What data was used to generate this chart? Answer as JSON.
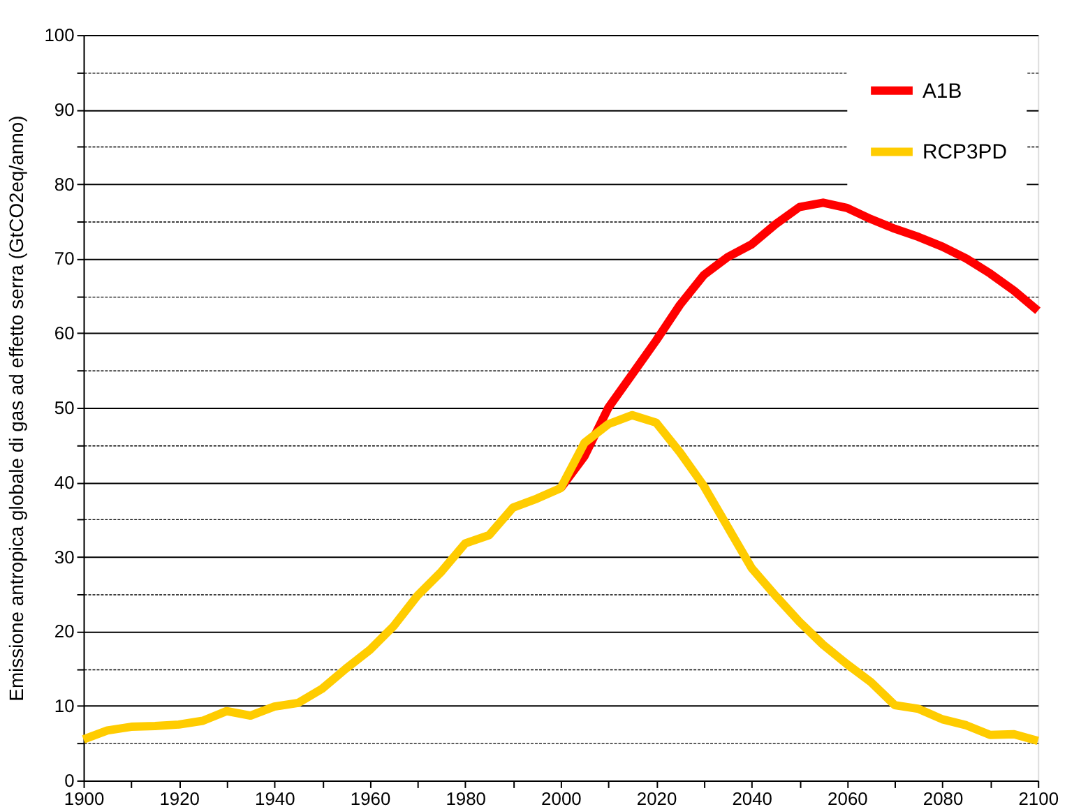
{
  "chart_data": {
    "type": "line",
    "ylabel": "Emissione antropica globale di gas ad effetto serra (GtCO2eq/anno)",
    "xlim": [
      1900,
      2100
    ],
    "ylim": [
      0,
      100
    ],
    "xticks": [
      1900,
      {
        "value": 1910,
        "label": null
      },
      1920,
      {
        "value": 1930,
        "label": null
      },
      1940,
      {
        "value": 1950,
        "label": null
      },
      1960,
      {
        "value": 1970,
        "label": null
      },
      1980,
      {
        "value": 1990,
        "label": null
      },
      2000,
      {
        "value": 2010,
        "label": null
      },
      2020,
      {
        "value": 2030,
        "label": null
      },
      2040,
      {
        "value": 2050,
        "label": null
      },
      2060,
      {
        "value": 2070,
        "label": null
      },
      2080,
      {
        "value": 2090,
        "label": null
      },
      2100
    ],
    "yticks": [
      0,
      {
        "value": 5,
        "label": null
      },
      10,
      {
        "value": 15,
        "label": null
      },
      20,
      {
        "value": 25,
        "label": null
      },
      30,
      {
        "value": 35,
        "label": null
      },
      40,
      {
        "value": 45,
        "label": null
      },
      50,
      {
        "value": 55,
        "label": null
      },
      60,
      {
        "value": 65,
        "label": null
      },
      70,
      {
        "value": 75,
        "label": null
      },
      80,
      {
        "value": 85,
        "label": null
      },
      90,
      {
        "value": 95,
        "label": null
      },
      100
    ],
    "grid": "y",
    "legend": "top right",
    "marker": "none",
    "line_style": "solid",
    "x": [
      1900,
      1905,
      1910,
      1915,
      1920,
      1925,
      1930,
      1935,
      1940,
      1945,
      1950,
      1955,
      1960,
      1965,
      1970,
      1975,
      1980,
      1985,
      1990,
      1995,
      2000,
      2005,
      2010,
      2015,
      2020,
      2025,
      2030,
      2035,
      2040,
      2045,
      2050,
      2055,
      2060,
      2065,
      2070,
      2075,
      2080,
      2085,
      2090,
      2095,
      2100
    ],
    "series": [
      {
        "name": "A1B",
        "color": "#ff0000",
        "values": [
          null,
          null,
          null,
          null,
          null,
          null,
          null,
          null,
          null,
          null,
          null,
          null,
          null,
          null,
          null,
          null,
          null,
          null,
          null,
          null,
          39.2,
          43.5,
          50,
          54.5,
          59,
          63.8,
          67.8,
          70.2,
          71.9,
          74.6,
          76.9,
          77.5,
          76.8,
          75.3,
          74,
          72.9,
          71.6,
          70,
          68,
          65.7,
          63
        ]
      },
      {
        "name": "RCP3PD",
        "color": "#ffcc00",
        "values": [
          5.5,
          6.7,
          7.2,
          7.3,
          7.5,
          8,
          9.3,
          8.7,
          9.9,
          10.4,
          12.3,
          15,
          17.5,
          20.7,
          24.8,
          28,
          31.8,
          32.9,
          36.6,
          37.8,
          39.2,
          45.3,
          47.8,
          49,
          48,
          44,
          39.5,
          34,
          28.5,
          24.8,
          21.3,
          18.2,
          15.6,
          13.2,
          10.1,
          9.6,
          8.2,
          7.4,
          6.1,
          6.2,
          5.3
        ]
      }
    ]
  }
}
